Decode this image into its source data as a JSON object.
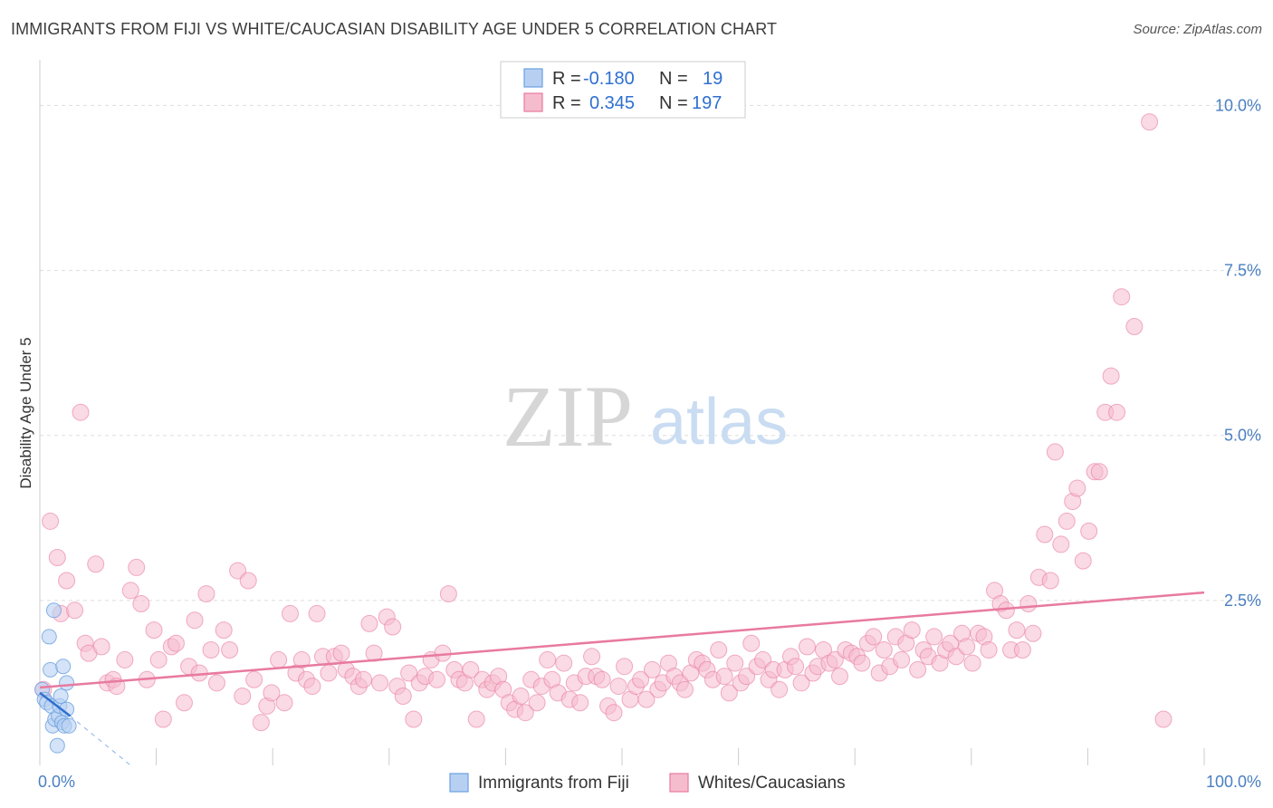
{
  "header": {
    "title": "IMMIGRANTS FROM FIJI VS WHITE/CAUCASIAN DISABILITY AGE UNDER 5 CORRELATION CHART",
    "source": "Source: ZipAtlas.com"
  },
  "watermark": {
    "zip": "ZIP",
    "atlas": "atlas"
  },
  "colors": {
    "blue": "#6aa0e0",
    "blue_fill": "#b7d0f2",
    "pink": "#e87aa0",
    "pink_fill": "#f5bccd",
    "tick_label": "#4a7fc1"
  },
  "legend": {
    "rows": [
      {
        "r_label": "R =",
        "r_value": "-0.180",
        "n_label": "N =",
        "n_value": "19"
      },
      {
        "r_label": "R =",
        "r_value": "0.345",
        "n_label": "N =",
        "n_value": "197"
      }
    ]
  },
  "chart_data": {
    "type": "scatter",
    "title": "IMMIGRANTS FROM FIJI VS WHITE/CAUCASIAN DISABILITY AGE UNDER 5 CORRELATION CHART",
    "xlabel": "",
    "ylabel": "Disability Age Under 5",
    "xlim": [
      0,
      100
    ],
    "ylim": [
      0,
      10.5
    ],
    "x_tick_labels": [
      "0.0%",
      "100.0%"
    ],
    "y_ticks": [
      2.5,
      5.0,
      7.5,
      10.0
    ],
    "y_tick_labels": [
      "2.5%",
      "5.0%",
      "7.5%",
      "10.0%"
    ],
    "legend_position": "top-center",
    "series": [
      {
        "name": "Immigrants from Fiji",
        "color": "blue",
        "points": [
          [
            0.2,
            1.15
          ],
          [
            0.4,
            1.0
          ],
          [
            0.6,
            0.95
          ],
          [
            0.8,
            1.95
          ],
          [
            0.9,
            1.45
          ],
          [
            1.0,
            0.9
          ],
          [
            1.1,
            0.6
          ],
          [
            1.2,
            2.35
          ],
          [
            1.3,
            0.7
          ],
          [
            1.5,
            0.3
          ],
          [
            1.6,
            0.75
          ],
          [
            1.7,
            0.9
          ],
          [
            1.8,
            1.05
          ],
          [
            1.9,
            0.65
          ],
          [
            2.0,
            1.5
          ],
          [
            2.1,
            0.6
          ],
          [
            2.3,
            0.85
          ],
          [
            2.5,
            0.6
          ],
          [
            2.3,
            1.25
          ]
        ],
        "trend": {
          "x1": 0,
          "y1": 1.1,
          "x2": 2.6,
          "y2": 0.75,
          "dashed_to_x": 7.8,
          "dashed_to_y": 0.0
        }
      },
      {
        "name": "Whites/Caucasians",
        "color": "pink",
        "points": [
          [
            0.3,
            1.15
          ],
          [
            0.9,
            3.7
          ],
          [
            1.5,
            3.15
          ],
          [
            1.8,
            2.3
          ],
          [
            2.3,
            2.8
          ],
          [
            3.0,
            2.35
          ],
          [
            3.5,
            5.35
          ],
          [
            3.9,
            1.85
          ],
          [
            4.2,
            1.7
          ],
          [
            4.8,
            3.05
          ],
          [
            5.3,
            1.8
          ],
          [
            5.8,
            1.25
          ],
          [
            6.3,
            1.3
          ],
          [
            6.6,
            1.2
          ],
          [
            7.3,
            1.6
          ],
          [
            7.8,
            2.65
          ],
          [
            8.3,
            3.0
          ],
          [
            8.7,
            2.45
          ],
          [
            9.2,
            1.3
          ],
          [
            9.8,
            2.05
          ],
          [
            10.2,
            1.6
          ],
          [
            10.6,
            0.7
          ],
          [
            11.3,
            1.8
          ],
          [
            11.7,
            1.85
          ],
          [
            12.4,
            0.95
          ],
          [
            12.8,
            1.5
          ],
          [
            13.3,
            2.2
          ],
          [
            13.7,
            1.4
          ],
          [
            14.3,
            2.6
          ],
          [
            14.7,
            1.75
          ],
          [
            15.2,
            1.25
          ],
          [
            15.8,
            2.05
          ],
          [
            16.3,
            1.75
          ],
          [
            17.0,
            2.95
          ],
          [
            17.4,
            1.05
          ],
          [
            17.9,
            2.8
          ],
          [
            18.4,
            1.3
          ],
          [
            19.0,
            0.65
          ],
          [
            19.5,
            0.9
          ],
          [
            19.9,
            1.1
          ],
          [
            20.5,
            1.6
          ],
          [
            21.0,
            0.95
          ],
          [
            21.5,
            2.3
          ],
          [
            22.0,
            1.4
          ],
          [
            22.5,
            1.6
          ],
          [
            22.9,
            1.3
          ],
          [
            23.4,
            1.2
          ],
          [
            23.8,
            2.3
          ],
          [
            24.3,
            1.65
          ],
          [
            24.8,
            1.4
          ],
          [
            25.3,
            1.65
          ],
          [
            25.9,
            1.7
          ],
          [
            26.3,
            1.45
          ],
          [
            26.9,
            1.35
          ],
          [
            27.4,
            1.2
          ],
          [
            27.8,
            1.3
          ],
          [
            28.3,
            2.15
          ],
          [
            28.7,
            1.7
          ],
          [
            29.2,
            1.25
          ],
          [
            29.8,
            2.25
          ],
          [
            30.3,
            2.1
          ],
          [
            30.7,
            1.2
          ],
          [
            31.2,
            1.05
          ],
          [
            31.7,
            1.4
          ],
          [
            32.1,
            0.7
          ],
          [
            32.6,
            1.25
          ],
          [
            33.1,
            1.35
          ],
          [
            33.6,
            1.6
          ],
          [
            34.1,
            1.3
          ],
          [
            34.6,
            1.7
          ],
          [
            35.1,
            2.6
          ],
          [
            35.6,
            1.45
          ],
          [
            36.0,
            1.3
          ],
          [
            36.5,
            1.25
          ],
          [
            37.0,
            1.45
          ],
          [
            37.5,
            0.7
          ],
          [
            38.0,
            1.3
          ],
          [
            38.4,
            1.15
          ],
          [
            38.9,
            1.25
          ],
          [
            39.4,
            1.35
          ],
          [
            39.8,
            1.15
          ],
          [
            40.3,
            0.95
          ],
          [
            40.8,
            0.85
          ],
          [
            41.3,
            1.05
          ],
          [
            41.7,
            0.8
          ],
          [
            42.2,
            1.3
          ],
          [
            42.7,
            0.95
          ],
          [
            43.1,
            1.2
          ],
          [
            43.6,
            1.6
          ],
          [
            44.0,
            1.3
          ],
          [
            44.5,
            1.1
          ],
          [
            45.0,
            1.55
          ],
          [
            45.5,
            1.0
          ],
          [
            45.9,
            1.25
          ],
          [
            46.4,
            0.95
          ],
          [
            46.9,
            1.35
          ],
          [
            47.4,
            1.65
          ],
          [
            47.8,
            1.35
          ],
          [
            48.3,
            1.3
          ],
          [
            48.8,
            0.9
          ],
          [
            49.3,
            0.8
          ],
          [
            49.7,
            1.2
          ],
          [
            50.2,
            1.5
          ],
          [
            50.7,
            1.0
          ],
          [
            51.2,
            1.2
          ],
          [
            51.6,
            1.3
          ],
          [
            52.1,
            1.0
          ],
          [
            52.6,
            1.45
          ],
          [
            53.1,
            1.15
          ],
          [
            53.5,
            1.25
          ],
          [
            54.0,
            1.55
          ],
          [
            54.5,
            1.35
          ],
          [
            55.0,
            1.25
          ],
          [
            55.4,
            1.15
          ],
          [
            55.9,
            1.4
          ],
          [
            56.4,
            1.6
          ],
          [
            56.9,
            1.55
          ],
          [
            57.3,
            1.45
          ],
          [
            57.8,
            1.3
          ],
          [
            58.3,
            1.75
          ],
          [
            58.8,
            1.35
          ],
          [
            59.2,
            1.1
          ],
          [
            59.7,
            1.55
          ],
          [
            60.2,
            1.25
          ],
          [
            60.7,
            1.35
          ],
          [
            61.1,
            1.85
          ],
          [
            61.6,
            1.5
          ],
          [
            62.1,
            1.6
          ],
          [
            62.6,
            1.3
          ],
          [
            63.0,
            1.45
          ],
          [
            63.5,
            1.15
          ],
          [
            64.0,
            1.45
          ],
          [
            64.5,
            1.65
          ],
          [
            64.9,
            1.5
          ],
          [
            65.4,
            1.25
          ],
          [
            65.9,
            1.8
          ],
          [
            66.4,
            1.4
          ],
          [
            66.8,
            1.5
          ],
          [
            67.3,
            1.75
          ],
          [
            67.8,
            1.55
          ],
          [
            68.3,
            1.6
          ],
          [
            68.7,
            1.35
          ],
          [
            69.2,
            1.75
          ],
          [
            69.7,
            1.7
          ],
          [
            70.2,
            1.65
          ],
          [
            70.6,
            1.55
          ],
          [
            71.1,
            1.85
          ],
          [
            71.6,
            1.95
          ],
          [
            72.1,
            1.4
          ],
          [
            72.5,
            1.75
          ],
          [
            73.0,
            1.5
          ],
          [
            73.5,
            1.95
          ],
          [
            74.0,
            1.6
          ],
          [
            74.4,
            1.85
          ],
          [
            74.9,
            2.05
          ],
          [
            75.4,
            1.45
          ],
          [
            75.9,
            1.75
          ],
          [
            76.3,
            1.65
          ],
          [
            76.8,
            1.95
          ],
          [
            77.3,
            1.55
          ],
          [
            77.8,
            1.75
          ],
          [
            78.2,
            1.85
          ],
          [
            78.7,
            1.65
          ],
          [
            79.2,
            2.0
          ],
          [
            79.6,
            1.8
          ],
          [
            80.1,
            1.55
          ],
          [
            80.6,
            2.0
          ],
          [
            81.1,
            1.95
          ],
          [
            81.5,
            1.75
          ],
          [
            82.0,
            2.65
          ],
          [
            82.5,
            2.45
          ],
          [
            83.0,
            2.35
          ],
          [
            83.4,
            1.75
          ],
          [
            83.9,
            2.05
          ],
          [
            84.4,
            1.75
          ],
          [
            84.9,
            2.45
          ],
          [
            85.3,
            2.0
          ],
          [
            85.8,
            2.85
          ],
          [
            86.3,
            3.5
          ],
          [
            86.8,
            2.8
          ],
          [
            87.2,
            4.75
          ],
          [
            87.7,
            3.35
          ],
          [
            88.2,
            3.7
          ],
          [
            88.7,
            4.0
          ],
          [
            89.1,
            4.2
          ],
          [
            89.6,
            3.1
          ],
          [
            90.1,
            3.55
          ],
          [
            90.6,
            4.45
          ],
          [
            91.0,
            4.45
          ],
          [
            91.5,
            5.35
          ],
          [
            92.0,
            5.9
          ],
          [
            92.5,
            5.35
          ],
          [
            92.9,
            7.1
          ],
          [
            94.0,
            6.65
          ],
          [
            95.3,
            9.75
          ],
          [
            96.5,
            0.7
          ]
        ],
        "trend": {
          "x1": 0,
          "y1": 1.18,
          "x2": 100,
          "y2": 2.62
        }
      }
    ]
  },
  "bottom_legend": {
    "items": [
      {
        "label": "Immigrants from Fiji"
      },
      {
        "label": "Whites/Caucasians"
      }
    ]
  }
}
